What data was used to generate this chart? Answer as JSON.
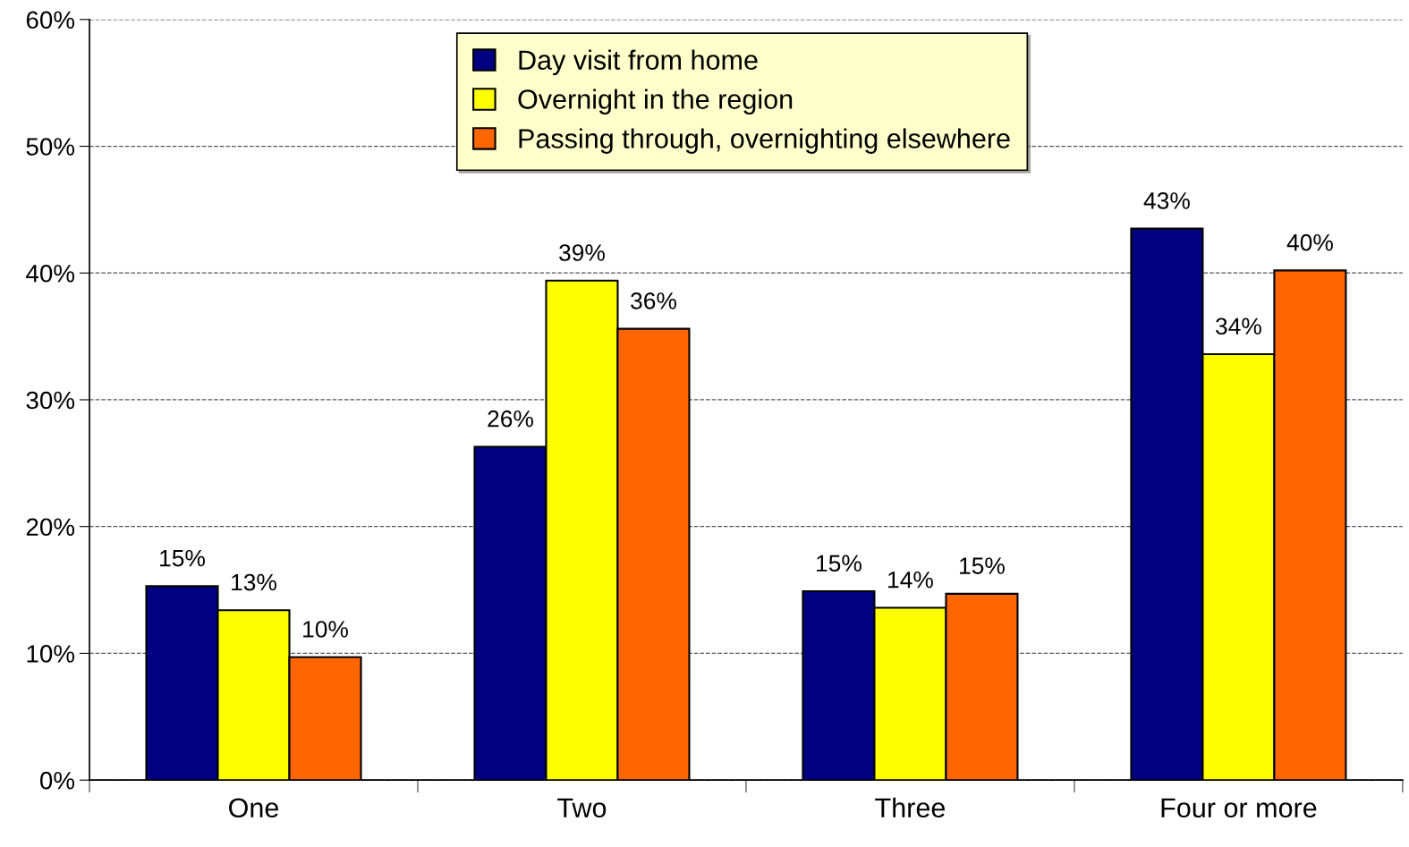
{
  "chart_data": {
    "type": "bar",
    "categories": [
      "One",
      "Two",
      "Three",
      "Four or more"
    ],
    "series": [
      {
        "name": "Day visit from home",
        "color": "#000080",
        "values": [
          15.3,
          26.3,
          14.9,
          43.5
        ],
        "value_labels": [
          "15%",
          "26%",
          "15%",
          "43%"
        ]
      },
      {
        "name": "Overnight in the region",
        "color": "#ffff00",
        "values": [
          13.4,
          39.4,
          13.6,
          33.6
        ],
        "value_labels": [
          "13%",
          "39%",
          "14%",
          "34%"
        ]
      },
      {
        "name": "Passing through, overnighting elsewhere",
        "color": "#ff6600",
        "values": [
          9.7,
          35.6,
          14.7,
          40.2
        ],
        "value_labels": [
          "10%",
          "36%",
          "15%",
          "40%"
        ]
      }
    ],
    "ylim": [
      0,
      60
    ],
    "yticks": [
      {
        "value": 0,
        "label": "0%"
      },
      {
        "value": 10,
        "label": "10%"
      },
      {
        "value": 20,
        "label": "20%"
      },
      {
        "value": 30,
        "label": "30%"
      },
      {
        "value": 40,
        "label": "40%"
      },
      {
        "value": 50,
        "label": "50%"
      },
      {
        "value": 60,
        "label": "60%"
      }
    ],
    "grid": "y",
    "legend": "top"
  }
}
